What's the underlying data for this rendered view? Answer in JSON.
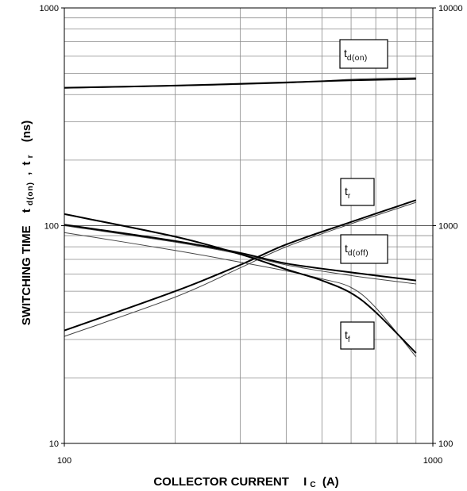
{
  "chart_data": {
    "type": "line",
    "x_scale": "log",
    "y_scale": "log",
    "xlim": [
      100,
      1000
    ],
    "ylim": [
      10,
      1000
    ],
    "right_ylim": [
      100,
      10000
    ],
    "grid": true,
    "x_ticks": [
      {
        "value": 100,
        "label": "100"
      },
      {
        "value": 1000,
        "label": "1000"
      }
    ],
    "y_ticks": [
      {
        "value": 10,
        "label": "10"
      },
      {
        "value": 100,
        "label": "100"
      },
      {
        "value": 1000,
        "label": "1000"
      }
    ],
    "right_y_ticks": [
      {
        "value": 100,
        "label": "100"
      },
      {
        "value": 1000,
        "label": "1000"
      },
      {
        "value": 10000,
        "label": "10000"
      }
    ],
    "xlabel": {
      "main": "COLLECTOR CURRENT",
      "symbol": "I",
      "sub": "C",
      "unit": "(A)"
    },
    "ylabel": {
      "main": "SWITCHING TIME",
      "symbol1": "t",
      "sub1": "d(on)",
      "sep": ",",
      "symbol2": "t",
      "sub2": "r",
      "unit": "(ns)"
    },
    "series": [
      {
        "name": "td(on)",
        "label_main": "t",
        "label_sub": "d(on)",
        "thick": [
          [
            100,
            430
          ],
          [
            200,
            440
          ],
          [
            400,
            455
          ],
          [
            600,
            465
          ],
          [
            900,
            472
          ]
        ],
        "thin": [
          [
            100,
            428
          ],
          [
            200,
            438
          ],
          [
            400,
            452
          ],
          [
            600,
            470
          ],
          [
            900,
            478
          ]
        ]
      },
      {
        "name": "tr",
        "label_main": "t",
        "label_sub": "r",
        "thick": [
          [
            100,
            33
          ],
          [
            200,
            50
          ],
          [
            300,
            66
          ],
          [
            400,
            82
          ],
          [
            600,
            104
          ],
          [
            900,
            131
          ]
        ],
        "thin": [
          [
            100,
            31
          ],
          [
            200,
            47
          ],
          [
            300,
            64
          ],
          [
            400,
            80
          ],
          [
            600,
            102
          ],
          [
            900,
            128
          ]
        ]
      },
      {
        "name": "td(off)",
        "label_main": "t",
        "label_sub": "d(off)",
        "thick": [
          [
            100,
            101
          ],
          [
            200,
            85
          ],
          [
            300,
            75
          ],
          [
            400,
            67
          ],
          [
            600,
            61
          ],
          [
            900,
            56
          ]
        ],
        "thin": [
          [
            100,
            100
          ],
          [
            200,
            84
          ],
          [
            300,
            74
          ],
          [
            400,
            66
          ],
          [
            600,
            59
          ],
          [
            900,
            54
          ]
        ]
      },
      {
        "name": "tf",
        "label_main": "t",
        "label_sub": "f",
        "thick": [
          [
            100,
            113
          ],
          [
            200,
            89
          ],
          [
            300,
            74
          ],
          [
            400,
            63
          ],
          [
            500,
            56
          ],
          [
            600,
            49
          ],
          [
            700,
            40
          ],
          [
            900,
            26
          ]
        ],
        "thin": [
          [
            100,
            93
          ],
          [
            200,
            77
          ],
          [
            300,
            68
          ],
          [
            400,
            62
          ],
          [
            500,
            57
          ],
          [
            600,
            52
          ],
          [
            700,
            42
          ],
          [
            900,
            25
          ]
        ]
      }
    ]
  }
}
